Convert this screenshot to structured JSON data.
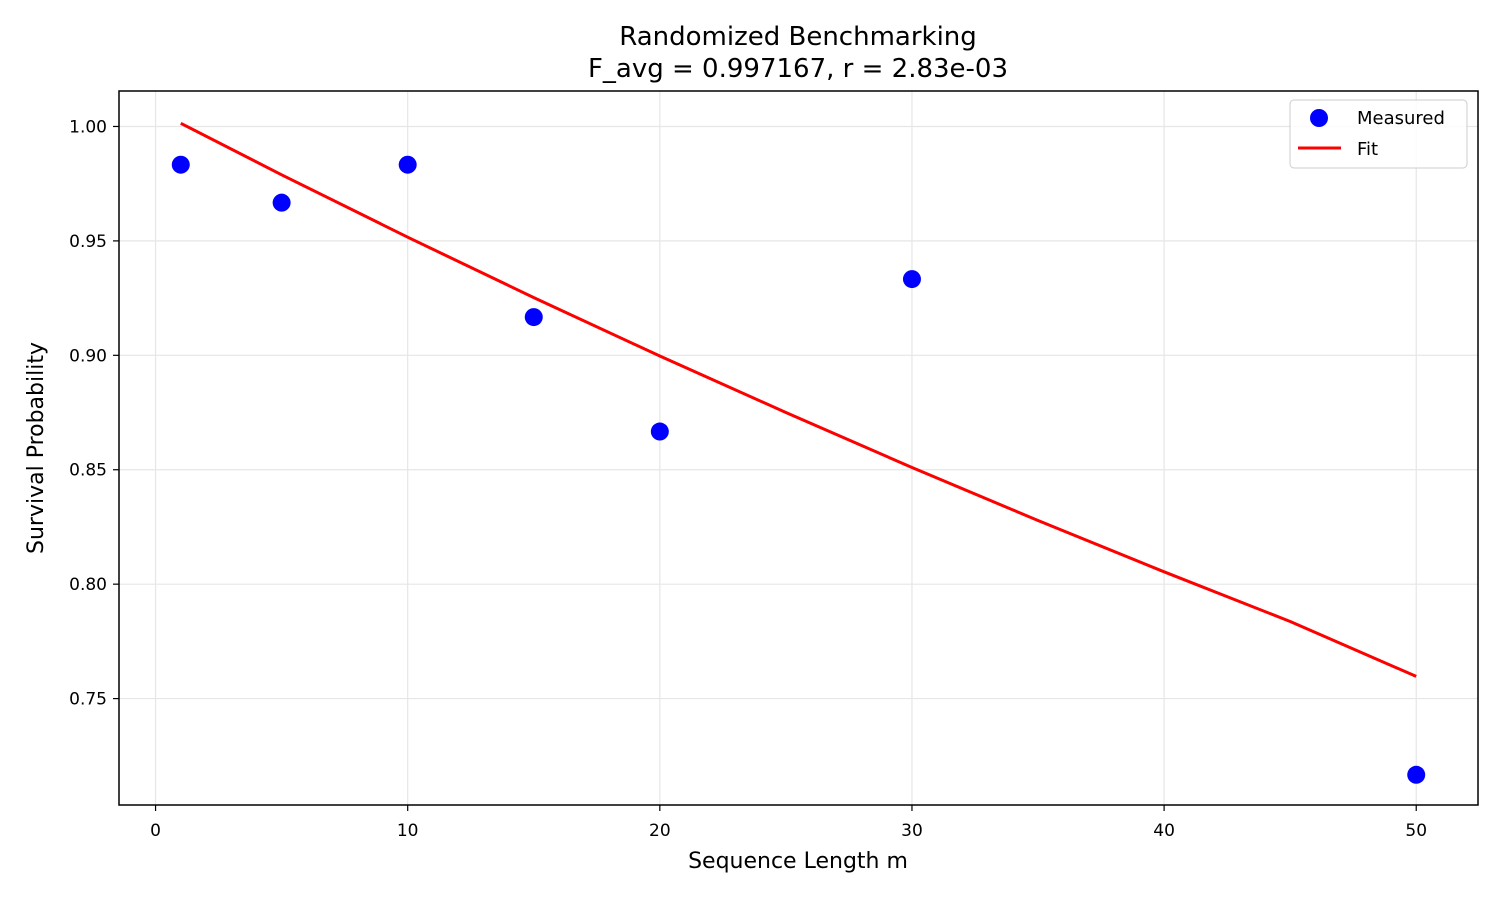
{
  "chart_data": {
    "type": "scatter",
    "title": "Randomized Benchmarking",
    "subtitle": "F_avg = 0.997167, r = 2.83e-03",
    "xlabel": "Sequence Length m",
    "ylabel": "Survival Probability",
    "xlim": [
      -1.45,
      52.45
    ],
    "ylim": [
      0.7035,
      1.0155
    ],
    "xticks": [
      0,
      10,
      20,
      30,
      40,
      50
    ],
    "xtick_labels": [
      "0",
      "10",
      "20",
      "30",
      "40",
      "50"
    ],
    "yticks": [
      0.75,
      0.8,
      0.85,
      0.9,
      0.95,
      1.0
    ],
    "ytick_labels": [
      "0.75",
      "0.80",
      "0.85",
      "0.90",
      "0.95",
      "1.00"
    ],
    "grid": true,
    "legend_position": "top-right",
    "series": [
      {
        "name": "Measured",
        "kind": "scatter",
        "color": "#0000ff",
        "x": [
          1,
          5,
          10,
          15,
          20,
          30,
          50
        ],
        "y": [
          0.9833,
          0.9667,
          0.9833,
          0.9167,
          0.8667,
          0.9333,
          0.7167
        ]
      },
      {
        "name": "Fit",
        "kind": "line",
        "color": "#ff0000",
        "x": [
          1,
          5,
          10,
          15,
          20,
          25,
          30,
          35,
          40,
          45,
          50
        ],
        "y": [
          1.0014,
          0.9789,
          0.9516,
          0.9252,
          0.8997,
          0.875,
          0.851,
          0.8278,
          0.8054,
          0.7837,
          0.7597
        ]
      }
    ]
  }
}
